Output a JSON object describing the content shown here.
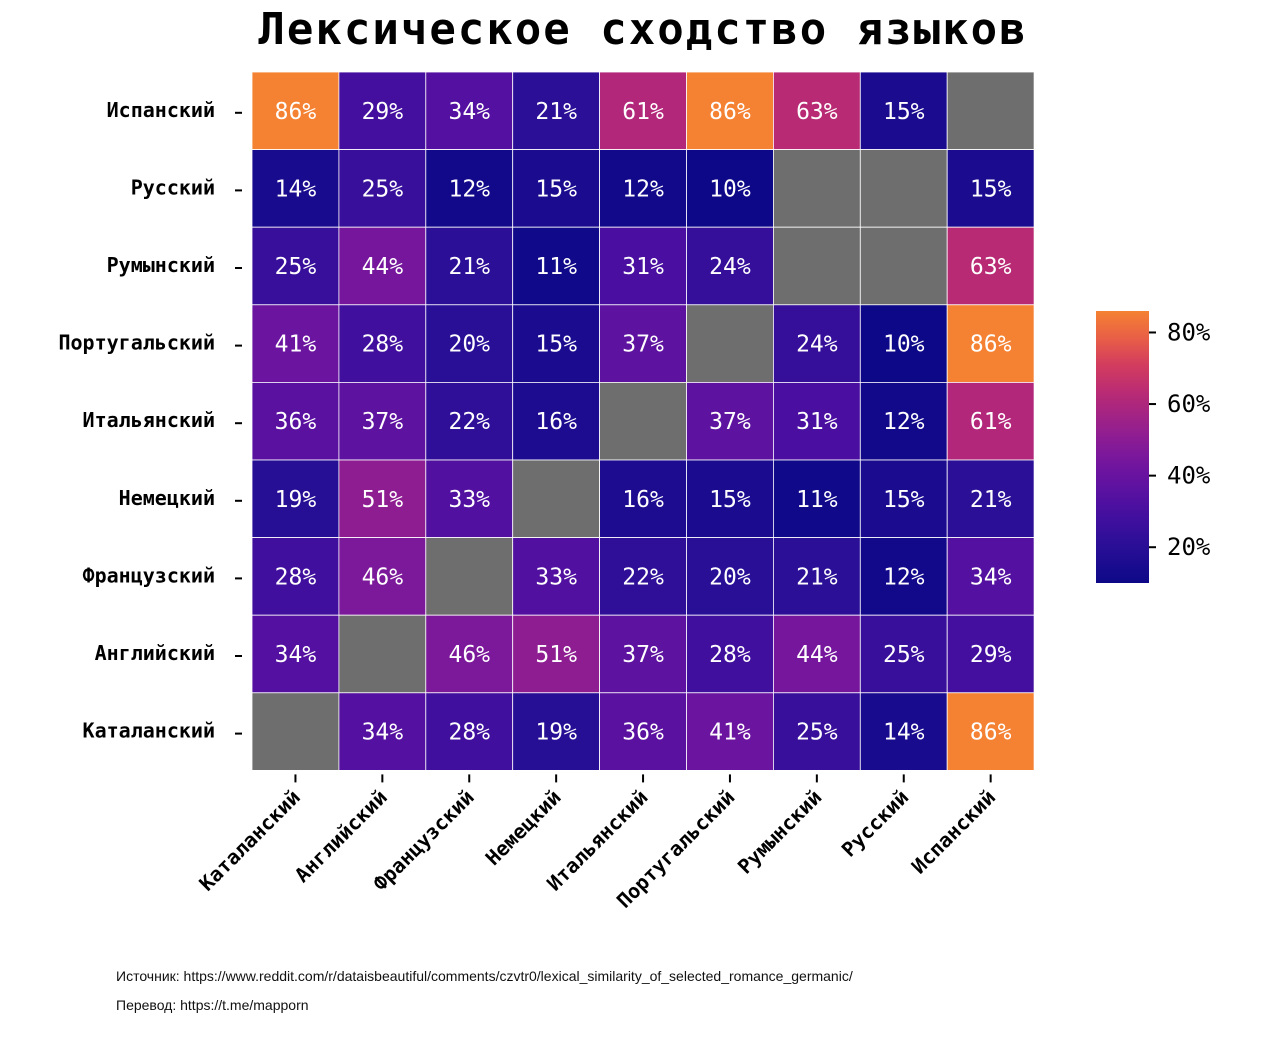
{
  "title": "Лексическое сходство языков",
  "source_line": "Источник: https://www.reddit.com/r/dataisbeautiful/comments/czvtr0/lexical_similarity_of_selected_romance_germanic/",
  "translation_line": "Перевод: https://t.me/mapporn",
  "chart_data": {
    "type": "heatmap",
    "title": "Лексическое сходство языков",
    "x_categories": [
      "Каталанский",
      "Английский",
      "Французский",
      "Немецкий",
      "Итальянский",
      "Португальский",
      "Румынский",
      "Русский",
      "Испанский"
    ],
    "y_categories": [
      "Испанский",
      "Русский",
      "Румынский",
      "Португальский",
      "Итальянский",
      "Немецкий",
      "Французский",
      "Английский",
      "Каталанский"
    ],
    "values": [
      [
        86,
        29,
        34,
        21,
        61,
        86,
        63,
        15,
        null
      ],
      [
        14,
        25,
        12,
        15,
        12,
        10,
        null,
        null,
        15
      ],
      [
        25,
        44,
        21,
        11,
        31,
        24,
        null,
        null,
        63
      ],
      [
        41,
        28,
        20,
        15,
        37,
        null,
        24,
        10,
        86
      ],
      [
        36,
        37,
        22,
        16,
        null,
        37,
        31,
        12,
        61
      ],
      [
        19,
        51,
        33,
        null,
        16,
        15,
        11,
        15,
        21
      ],
      [
        28,
        46,
        null,
        33,
        22,
        20,
        21,
        12,
        34
      ],
      [
        34,
        null,
        46,
        51,
        37,
        28,
        44,
        25,
        29
      ],
      [
        null,
        34,
        28,
        19,
        36,
        41,
        25,
        14,
        86
      ]
    ],
    "value_suffix": "%",
    "missing_color": "#6e6e6e",
    "colormap": "plasma",
    "color_range": [
      10,
      86
    ],
    "colorbar_ticks": [
      "20%",
      "40%",
      "60%",
      "80%"
    ],
    "colorbar_tick_values": [
      20,
      40,
      60,
      80
    ],
    "grid_lines": true,
    "colorbar_position": "right"
  }
}
